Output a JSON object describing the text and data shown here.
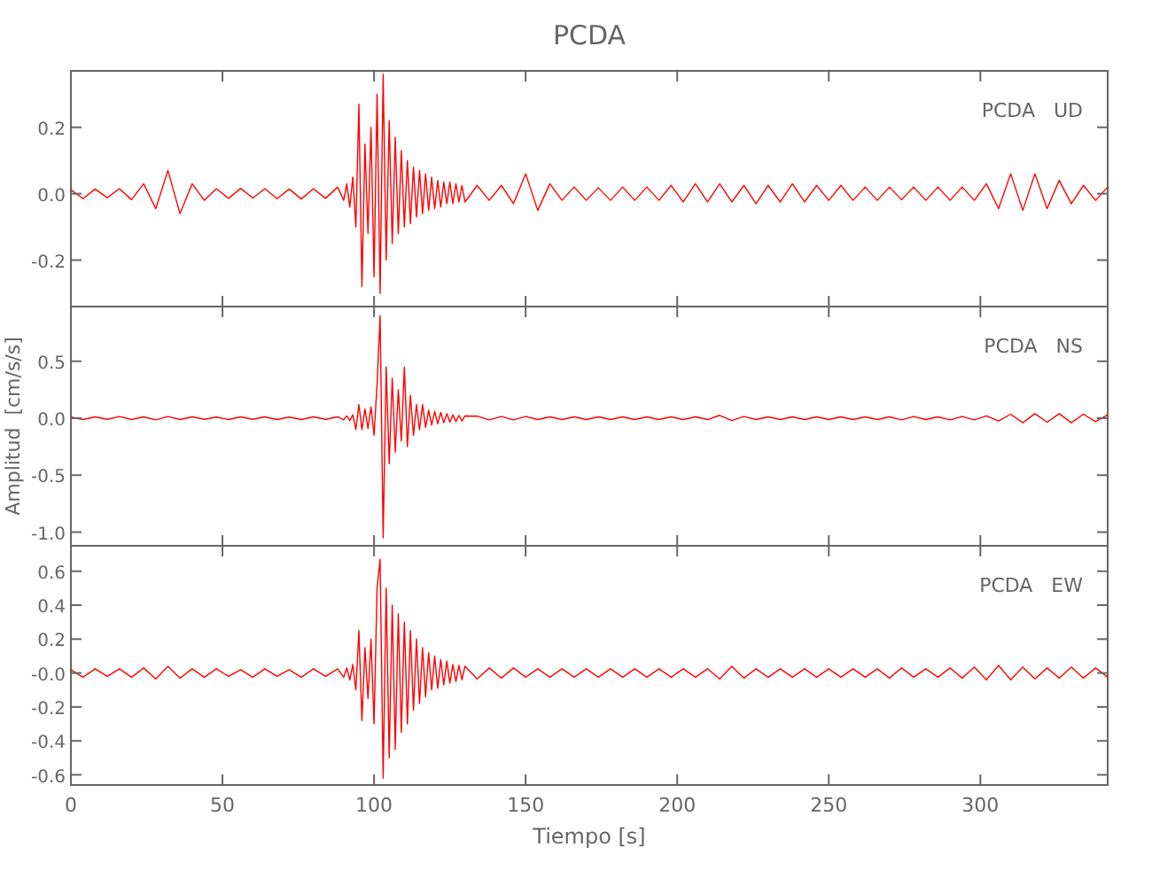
{
  "chart_data": [
    {
      "type": "line",
      "title": "PCDA",
      "annotations": [
        "PCDA   UD"
      ],
      "xlim": [
        0,
        342
      ],
      "xticks": [
        0,
        50,
        100,
        150,
        200,
        250,
        300
      ],
      "ylim": [
        -0.34,
        0.37
      ],
      "yticks": [
        {
          "value": -0.2,
          "label": "-0.2"
        },
        {
          "value": 0,
          "label": "0.0"
        },
        0.2
      ],
      "tick_labels": "y",
      "x": [
        0,
        4,
        8,
        12,
        16,
        20,
        24,
        28,
        32,
        36,
        40,
        44,
        48,
        52,
        56,
        60,
        64,
        68,
        72,
        76,
        80,
        84,
        88,
        90,
        91,
        92,
        93,
        94,
        95,
        96,
        97,
        98,
        99,
        100,
        101,
        102,
        103,
        104,
        105,
        106,
        107,
        108,
        109,
        110,
        111,
        112,
        113,
        114,
        115,
        116,
        117,
        118,
        119,
        120,
        121,
        122,
        123,
        124,
        125,
        126,
        127,
        128,
        129,
        130,
        134,
        138,
        142,
        146,
        150,
        154,
        158,
        162,
        166,
        170,
        174,
        178,
        182,
        186,
        190,
        194,
        198,
        202,
        206,
        210,
        214,
        218,
        222,
        226,
        230,
        234,
        238,
        242,
        246,
        250,
        254,
        258,
        262,
        266,
        270,
        274,
        278,
        282,
        286,
        290,
        294,
        298,
        302,
        306,
        310,
        314,
        318,
        322,
        326,
        330,
        334,
        338,
        342
      ],
      "series": [
        {
          "color": "#ff0000",
          "values": [
            0.012,
            -0.015,
            0.014,
            -0.012,
            0.015,
            -0.018,
            0.03,
            -0.045,
            0.07,
            -0.06,
            0.03,
            -0.02,
            0.015,
            -0.014,
            0.016,
            -0.013,
            0.015,
            -0.015,
            0.014,
            -0.016,
            0.015,
            -0.014,
            0.02,
            -0.02,
            0.03,
            -0.04,
            0.05,
            -0.1,
            0.27,
            -0.28,
            0.15,
            -0.12,
            0.2,
            -0.25,
            0.3,
            -0.3,
            0.36,
            -0.2,
            0.22,
            -0.15,
            0.17,
            -0.12,
            0.13,
            -0.1,
            0.1,
            -0.09,
            0.08,
            -0.07,
            0.07,
            -0.06,
            0.06,
            -0.05,
            0.05,
            -0.045,
            0.04,
            -0.04,
            0.035,
            -0.03,
            0.035,
            -0.03,
            0.03,
            -0.025,
            0.025,
            -0.025,
            0.025,
            -0.02,
            0.025,
            -0.03,
            0.06,
            -0.05,
            0.03,
            -0.02,
            0.02,
            -0.02,
            0.018,
            -0.02,
            0.02,
            -0.02,
            0.02,
            -0.02,
            0.025,
            -0.025,
            0.03,
            -0.025,
            0.03,
            -0.025,
            0.025,
            -0.03,
            0.025,
            -0.025,
            0.03,
            -0.025,
            0.025,
            -0.02,
            0.025,
            -0.02,
            0.02,
            -0.02,
            0.02,
            -0.018,
            0.02,
            -0.02,
            0.02,
            -0.02,
            0.02,
            -0.02,
            0.03,
            -0.045,
            0.06,
            -0.05,
            0.06,
            -0.045,
            0.04,
            -0.03,
            0.025,
            -0.02,
            0.02
          ]
        }
      ]
    },
    {
      "type": "line",
      "ylabel": "Amplitud  [cm/s/s]",
      "annotations": [
        "PCDA   NS"
      ],
      "xlim": [
        0,
        342
      ],
      "xticks": [
        0,
        50,
        100,
        150,
        200,
        250,
        300
      ],
      "ylim": [
        -1.12,
        0.98
      ],
      "yticks": [
        {
          "value": -1,
          "label": "-1.0"
        },
        {
          "value": -0.5,
          "label": "-0.5"
        },
        {
          "value": 0,
          "label": "0.0"
        },
        0.5
      ],
      "tick_labels": "y",
      "x": [
        0,
        4,
        8,
        12,
        16,
        20,
        24,
        28,
        32,
        36,
        40,
        44,
        48,
        52,
        56,
        60,
        64,
        68,
        72,
        76,
        80,
        84,
        88,
        90,
        91,
        92,
        93,
        94,
        95,
        96,
        97,
        98,
        99,
        100,
        101,
        102,
        103,
        104,
        105,
        106,
        107,
        108,
        109,
        110,
        111,
        112,
        113,
        114,
        115,
        116,
        117,
        118,
        119,
        120,
        121,
        122,
        123,
        124,
        125,
        126,
        127,
        128,
        129,
        130,
        134,
        138,
        142,
        146,
        150,
        154,
        158,
        162,
        166,
        170,
        174,
        178,
        182,
        186,
        190,
        194,
        198,
        202,
        206,
        210,
        214,
        218,
        222,
        226,
        230,
        234,
        238,
        242,
        246,
        250,
        254,
        258,
        262,
        266,
        270,
        274,
        278,
        282,
        286,
        290,
        294,
        298,
        302,
        306,
        310,
        314,
        318,
        322,
        326,
        330,
        334,
        338,
        342
      ],
      "series": [
        {
          "color": "#ff0000",
          "values": [
            0.01,
            -0.012,
            0.012,
            -0.01,
            0.015,
            -0.012,
            0.012,
            -0.015,
            0.015,
            -0.012,
            0.012,
            -0.01,
            0.01,
            -0.012,
            0.012,
            -0.01,
            0.012,
            -0.012,
            0.01,
            -0.012,
            0.012,
            -0.01,
            0.012,
            -0.015,
            0.02,
            -0.02,
            0.03,
            -0.1,
            0.12,
            -0.1,
            0.08,
            -0.09,
            0.1,
            -0.15,
            0.3,
            0.9,
            -1.05,
            0.45,
            -0.4,
            0.35,
            -0.3,
            0.25,
            -0.2,
            0.45,
            -0.25,
            0.2,
            -0.15,
            0.12,
            -0.1,
            0.12,
            -0.08,
            0.07,
            -0.06,
            0.06,
            -0.05,
            0.05,
            -0.04,
            0.04,
            -0.035,
            0.03,
            -0.03,
            0.025,
            -0.025,
            0.02,
            0.018,
            -0.015,
            0.015,
            -0.015,
            0.015,
            -0.012,
            0.012,
            -0.012,
            0.012,
            -0.012,
            0.012,
            -0.012,
            0.012,
            -0.012,
            0.012,
            -0.012,
            0.012,
            -0.012,
            0.012,
            -0.012,
            0.025,
            -0.02,
            0.015,
            -0.012,
            0.012,
            -0.012,
            0.012,
            -0.012,
            0.012,
            -0.012,
            0.012,
            -0.012,
            0.012,
            -0.012,
            0.012,
            -0.015,
            0.015,
            -0.012,
            0.012,
            -0.015,
            0.015,
            -0.015,
            0.02,
            -0.025,
            0.035,
            -0.04,
            0.04,
            -0.035,
            0.04,
            -0.04,
            0.035,
            -0.03,
            0.03
          ]
        }
      ]
    },
    {
      "type": "line",
      "xlabel": "Tiempo  [s]",
      "annotations": [
        "PCDA   EW"
      ],
      "xlim": [
        0,
        342
      ],
      "xticks": [
        0,
        50,
        100,
        150,
        200,
        250,
        300
      ],
      "ylim": [
        -0.66,
        0.75
      ],
      "yticks": [
        {
          "value": -0.6,
          "label": "-0.6"
        },
        {
          "value": -0.4,
          "label": "-0.4"
        },
        {
          "value": -0.2,
          "label": "-0.2"
        },
        {
          "value": 0,
          "label": "-0.0"
        },
        0.2,
        0.4,
        0.6
      ],
      "x": [
        0,
        4,
        8,
        12,
        16,
        20,
        24,
        28,
        32,
        36,
        40,
        44,
        48,
        52,
        56,
        60,
        64,
        68,
        72,
        76,
        80,
        84,
        88,
        90,
        91,
        92,
        93,
        94,
        95,
        96,
        97,
        98,
        99,
        100,
        101,
        102,
        103,
        104,
        105,
        106,
        107,
        108,
        109,
        110,
        111,
        112,
        113,
        114,
        115,
        116,
        117,
        118,
        119,
        120,
        121,
        122,
        123,
        124,
        125,
        126,
        127,
        128,
        129,
        130,
        134,
        138,
        142,
        146,
        150,
        154,
        158,
        162,
        166,
        170,
        174,
        178,
        182,
        186,
        190,
        194,
        198,
        202,
        206,
        210,
        214,
        218,
        222,
        226,
        230,
        234,
        238,
        242,
        246,
        250,
        254,
        258,
        262,
        266,
        270,
        274,
        278,
        282,
        286,
        290,
        294,
        298,
        302,
        306,
        310,
        314,
        318,
        322,
        326,
        330,
        334,
        338,
        342
      ],
      "series": [
        {
          "color": "#ff0000",
          "values": [
            0.02,
            -0.025,
            0.025,
            -0.02,
            0.025,
            -0.025,
            0.03,
            -0.035,
            0.04,
            -0.03,
            0.025,
            -0.025,
            0.025,
            -0.02,
            0.02,
            -0.025,
            0.025,
            -0.02,
            0.02,
            -0.025,
            0.025,
            -0.02,
            0.025,
            -0.025,
            0.03,
            -0.04,
            0.05,
            -0.1,
            0.25,
            -0.28,
            0.15,
            -0.15,
            0.2,
            -0.3,
            0.5,
            0.67,
            -0.62,
            0.5,
            -0.5,
            0.4,
            -0.45,
            0.35,
            -0.35,
            0.3,
            -0.3,
            0.25,
            -0.22,
            0.2,
            -0.18,
            0.15,
            -0.14,
            0.12,
            -0.1,
            0.1,
            -0.09,
            0.08,
            -0.07,
            0.07,
            -0.06,
            0.05,
            -0.05,
            0.045,
            -0.04,
            0.04,
            -0.035,
            0.03,
            -0.03,
            0.03,
            -0.025,
            0.025,
            -0.025,
            0.025,
            -0.025,
            0.025,
            -0.025,
            0.025,
            -0.025,
            0.025,
            -0.025,
            0.025,
            -0.025,
            0.025,
            -0.025,
            0.025,
            -0.035,
            0.04,
            -0.03,
            0.025,
            -0.025,
            0.025,
            -0.025,
            0.025,
            -0.025,
            0.025,
            -0.025,
            0.025,
            -0.025,
            0.025,
            -0.03,
            0.03,
            -0.025,
            0.025,
            -0.025,
            0.03,
            -0.03,
            0.035,
            -0.04,
            0.045,
            -0.04,
            0.035,
            -0.035,
            0.03,
            -0.03,
            0.035,
            -0.03,
            0.03,
            -0.025
          ]
        }
      ]
    }
  ]
}
